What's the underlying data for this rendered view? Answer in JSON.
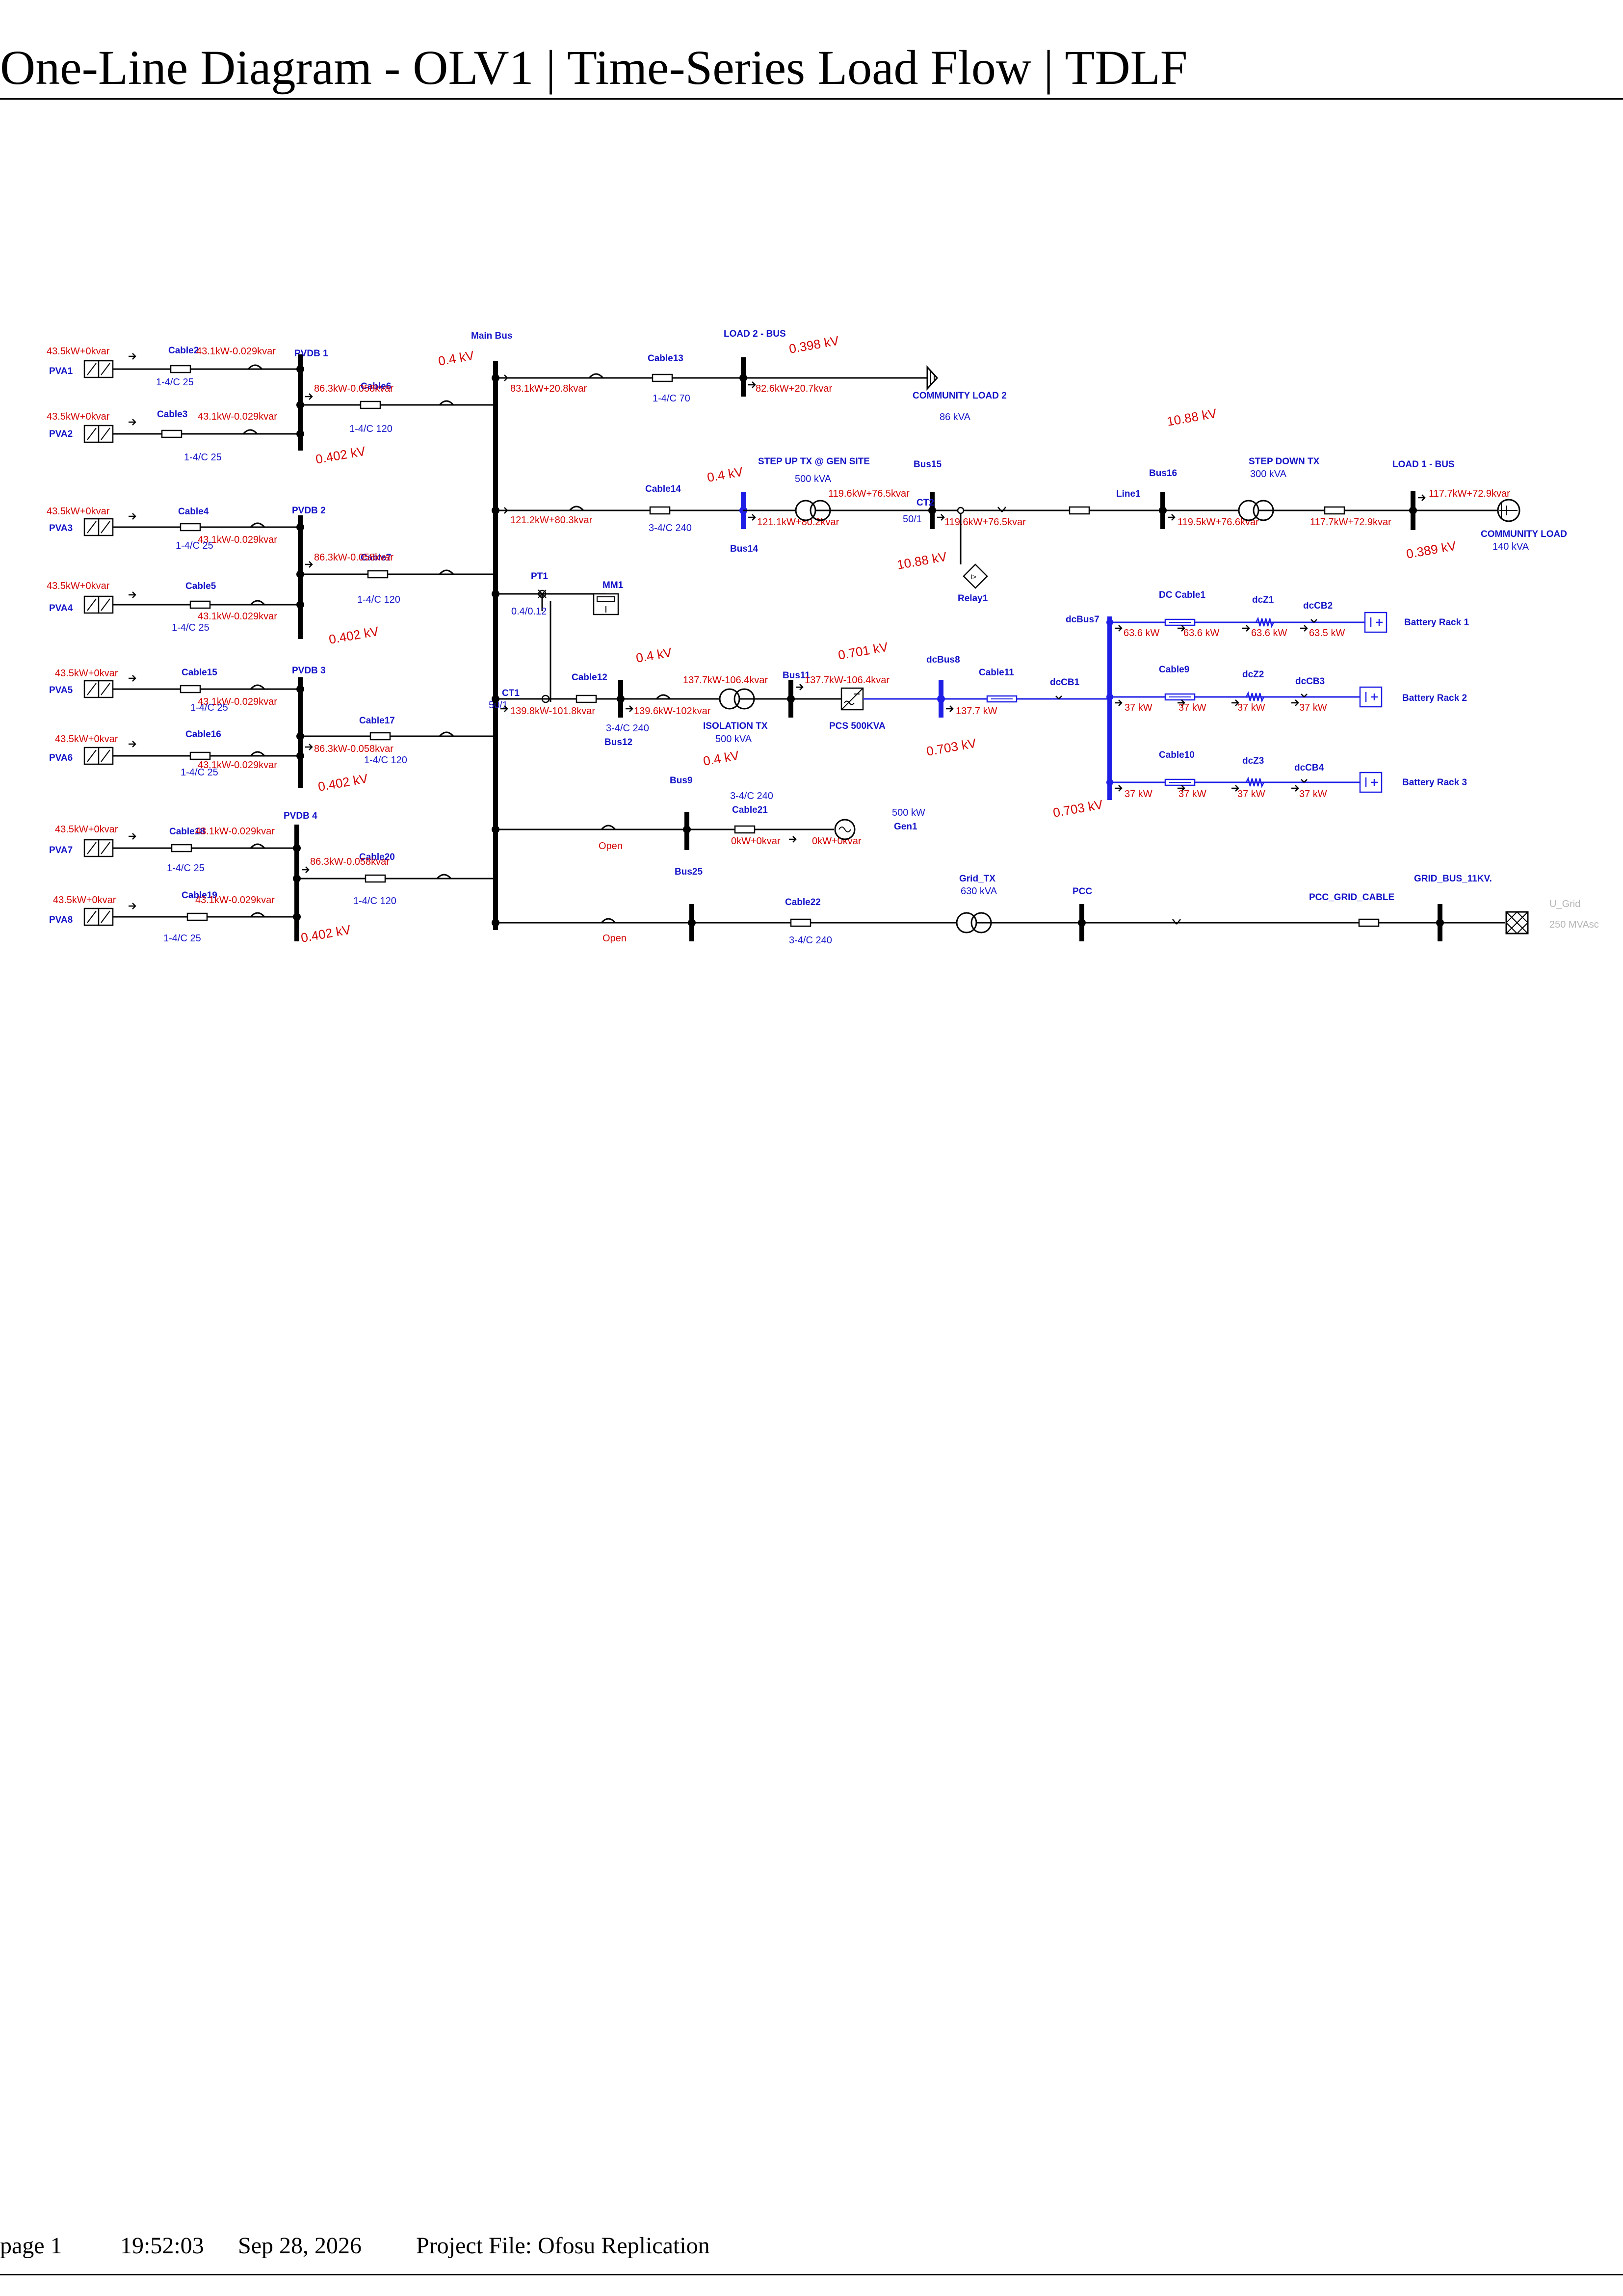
{
  "header": {
    "title": "One-Line Diagram   -   OLV1 | Time-Series Load Flow | TDLF"
  },
  "footer": {
    "page": "page 1",
    "time": "19:52:03",
    "date": "Sep 28, 2026",
    "project": "Project File: Ofosu Replication"
  },
  "colors": {
    "label": "#1414c8",
    "flow": "#d20000",
    "wire": "#000000",
    "dc_wire": "#1e1ee6",
    "grey": "#b4b4b4"
  },
  "pv_arrays": [
    {
      "name": "PVA1",
      "flow": "43.5kW+0kvar",
      "cable": "Cable2",
      "cable_flow": "43.1kW-0.029kvar",
      "size": "1-4/C 25"
    },
    {
      "name": "PVA2",
      "flow": "43.5kW+0kvar",
      "cable": "Cable3",
      "cable_flow": "43.1kW-0.029kvar",
      "size": "1-4/C 25"
    },
    {
      "name": "PVA3",
      "flow": "43.5kW+0kvar",
      "cable": "Cable4",
      "cable_flow": "43.1kW-0.029kvar",
      "size": "1-4/C 25"
    },
    {
      "name": "PVA4",
      "flow": "43.5kW+0kvar",
      "cable": "Cable5",
      "cable_flow": "43.1kW-0.029kvar",
      "size": "1-4/C 25"
    },
    {
      "name": "PVA5",
      "flow": "43.5kW+0kvar",
      "cable": "Cable15",
      "cable_flow": "43.1kW-0.029kvar",
      "size": "1-4/C 25"
    },
    {
      "name": "PVA6",
      "flow": "43.5kW+0kvar",
      "cable": "Cable16",
      "cable_flow": "43.1kW-0.029kvar",
      "size": "1-4/C 25"
    },
    {
      "name": "PVA7",
      "flow": "43.5kW+0kvar",
      "cable": "Cable18",
      "cable_flow": "43.1kW-0.029kvar",
      "size": "1-4/C 25"
    },
    {
      "name": "PVA8",
      "flow": "43.5kW+0kvar",
      "cable": "Cable19",
      "cable_flow": "43.1kW-0.029kvar",
      "size": "1-4/C 25"
    }
  ],
  "pvdbs": [
    {
      "name": "PVDB 1",
      "cable": "Cable6",
      "flow": "86.3kW-0.058kvar",
      "size": "1-4/C 120",
      "voltage": "0.402 kV"
    },
    {
      "name": "PVDB 2",
      "cable": "Cable7",
      "flow": "86.3kW-0.058kvar",
      "size": "1-4/C 120",
      "voltage": "0.402 kV"
    },
    {
      "name": "PVDB 3",
      "cable": "Cable17",
      "flow": "86.3kW-0.058kvar",
      "size": "1-4/C 120",
      "voltage": "0.402 kV"
    },
    {
      "name": "PVDB 4",
      "cable": "Cable20",
      "flow": "86.3kW-0.058kvar",
      "size": "1-4/C 120",
      "voltage": "0.402 kV"
    }
  ],
  "main_bus": {
    "name": "Main Bus",
    "voltage": "0.4 kV",
    "pt": "PT1",
    "pt_ratio": "0.4/0.12",
    "meter": "MM1",
    "ct": "CT1",
    "ct_ratio": "50/1"
  },
  "load2": {
    "cable": "Cable13",
    "cable_flow": "83.1kW+20.8kvar",
    "size": "1-4/C 70",
    "bus": "LOAD 2 - BUS",
    "voltage": "0.398 kV",
    "bus_flow": "82.6kW+20.7kvar",
    "load": "COMMUNITY LOAD 2",
    "rating": "86 kVA"
  },
  "feeder1": {
    "cable": "Cable14",
    "cable_flow": "121.2kW+80.3kvar",
    "size": "3-4/C 240",
    "bus14": "Bus14",
    "bus14_voltage": "0.4 kV",
    "bus14_flow": "121.1kW+80.2kvar",
    "step_up": "STEP UP TX @ GEN SITE",
    "step_up_rating": "500 kVA",
    "step_up_flow": "119.6kW+76.5kvar",
    "bus15": "Bus15",
    "ct": "CT2",
    "ct_ratio": "50/1",
    "bus15_flow": "119.6kW+76.5kvar",
    "bus15_voltage": "10.88 kV",
    "relay": "Relay1",
    "relay_symbol": "I>",
    "line": "Line1",
    "bus16": "Bus16",
    "bus16_voltage": "10.88 kV",
    "bus16_flow": "119.5kW+76.6kvar",
    "step_down": "STEP DOWN TX",
    "step_down_rating": "300 kVA",
    "step_down_flow": "117.7kW+72.9kvar",
    "load_bus": "LOAD 1 - BUS",
    "load_bus_flow": "117.7kW+72.9kvar",
    "load_bus_voltage": "0.389 kV",
    "load": "COMMUNITY LOAD",
    "load_rating": "140 kVA"
  },
  "storage": {
    "cable": "Cable12",
    "cable_flow": "139.8kW-101.8kvar",
    "size": "3-4/C 240",
    "bus12": "Bus12",
    "bus12_voltage": "0.4 kV",
    "bus12_flow": "139.6kW-102kvar",
    "iso_tx": "ISOLATION TX",
    "iso_rating": "500 kVA",
    "iso_flow": "137.7kW-106.4kvar",
    "iso_out_voltage": "0.4 kV",
    "bus11": "Bus11",
    "bus11_voltage": "0.701 kV",
    "bus11_flow": "137.7kW-106.4kvar",
    "pcs": "PCS 500KVA",
    "dcbus8": "dcBus8",
    "dcbus8_voltage": "0.703 kV",
    "cable11": "Cable11",
    "cable11_flow": "137.7 kW",
    "dccb1": "dcCB1",
    "dcbus7": "dcBus7",
    "dcbus7_voltage": "0.703 kV",
    "racks": [
      {
        "cable": "DC Cable1",
        "z": "dcZ1",
        "cb": "dcCB2",
        "rack": "Battery Rack 1",
        "flows": [
          "63.6 kW",
          "63.6 kW",
          "63.6 kW",
          "63.5 kW"
        ]
      },
      {
        "cable": "Cable9",
        "z": "dcZ2",
        "cb": "dcCB3",
        "rack": "Battery Rack 2",
        "flows": [
          "37 kW",
          "37 kW",
          "37 kW",
          "37 kW"
        ]
      },
      {
        "cable": "Cable10",
        "z": "dcZ3",
        "cb": "dcCB4",
        "rack": "Battery Rack 3",
        "flows": [
          "37 kW",
          "37 kW",
          "37 kW",
          "37 kW"
        ]
      }
    ],
    "battery_symbol": "I+"
  },
  "generator": {
    "status": "Open",
    "bus": "Bus9",
    "cable": "Cable21",
    "size": "3-4/C 240",
    "flow_in": "0kW+0kvar",
    "flow_out": "0kW+0kvar",
    "rating": "500 kW",
    "name": "Gen1"
  },
  "grid": {
    "status": "Open",
    "bus": "Bus25",
    "cable": "Cable22",
    "size": "3-4/C 240",
    "tx": "Grid_TX",
    "tx_rating": "630 kVA",
    "pcc": "PCC",
    "pcc_cable": "PCC_GRID_CABLE",
    "grid_bus": "GRID_BUS_11KV.",
    "source": "U_Grid",
    "source_rating": "250 MVAsc"
  }
}
